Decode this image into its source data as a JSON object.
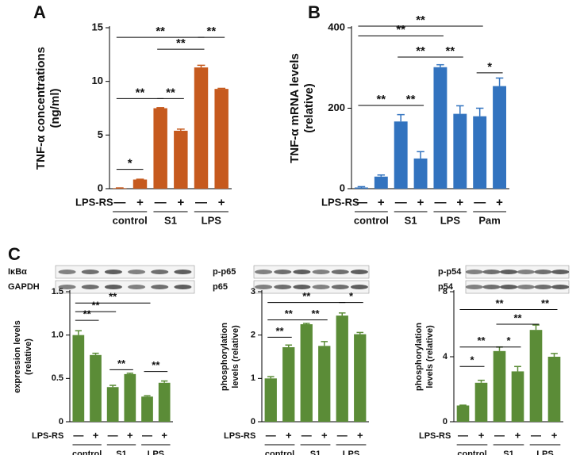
{
  "chart_data": [
    {
      "type": "bar",
      "panel": "A",
      "ylabel": [
        "TNF-α concentrations",
        "(ng/ml)"
      ],
      "color": "#c65a1e",
      "categories": [
        "—",
        "+",
        "—",
        "+",
        "—",
        "+"
      ],
      "row_label": "LPS-RS",
      "groups": [
        "control",
        "S1",
        "LPS"
      ],
      "values": [
        0.05,
        0.85,
        7.5,
        5.4,
        11.3,
        9.3
      ],
      "errors": [
        0.02,
        0.03,
        0.05,
        0.15,
        0.2,
        0.05
      ],
      "ylim": [
        0,
        15
      ],
      "yticks": [
        0,
        5,
        10,
        15
      ],
      "annotations": [
        {
          "text": "*",
          "from": 0,
          "to": 1
        },
        {
          "text": "**",
          "from": 0,
          "to": 2
        },
        {
          "text": "**",
          "from": 2,
          "to": 3
        },
        {
          "text": "**",
          "from": 2,
          "to": 4
        },
        {
          "text": "**",
          "from": 0,
          "to": 4
        },
        {
          "text": "**",
          "from": 4,
          "to": 5
        }
      ]
    },
    {
      "type": "bar",
      "panel": "B",
      "ylabel": [
        "TNF-α mRNA levels",
        "(relative)"
      ],
      "color": "#3273bf",
      "categories": [
        "—",
        "+",
        "—",
        "+",
        "—",
        "+",
        "—",
        "+"
      ],
      "row_label": "LPS-RS",
      "groups": [
        "control",
        "S1",
        "LPS",
        "Pam"
      ],
      "values": [
        3,
        30,
        167,
        75,
        302,
        186,
        180,
        255
      ],
      "errors": [
        2,
        4,
        17,
        17,
        6,
        20,
        20,
        20
      ],
      "ylim": [
        0,
        400
      ],
      "yticks": [
        0,
        200,
        400
      ],
      "annotations": [
        {
          "text": "**",
          "from": 0,
          "to": 2
        },
        {
          "text": "**",
          "from": 2,
          "to": 3
        },
        {
          "text": "**",
          "from": 2,
          "to": 4
        },
        {
          "text": "**",
          "from": 4,
          "to": 5
        },
        {
          "text": "*",
          "from": 6,
          "to": 7
        },
        {
          "text": "**",
          "from": 0,
          "to": 4
        },
        {
          "text": "**",
          "from": 0,
          "to": 6
        }
      ]
    },
    {
      "type": "bar",
      "panel": "C",
      "blot_labels": [
        "IκBα",
        "GAPDH"
      ],
      "ylabel": [
        "expression levels",
        "(relative)"
      ],
      "color": "#5b8c37",
      "categories": [
        "—",
        "+",
        "—",
        "+",
        "—",
        "+"
      ],
      "row_label": "LPS-RS",
      "groups": [
        "control",
        "S1",
        "LPS"
      ],
      "values": [
        1.0,
        0.77,
        0.4,
        0.55,
        0.29,
        0.45
      ],
      "errors": [
        0.05,
        0.02,
        0.02,
        0.01,
        0.01,
        0.02
      ],
      "ylim": [
        0,
        1.5
      ],
      "yticks": [
        0,
        0.5,
        {
          "value": 1,
          "label": "1.0"
        },
        1.5
      ],
      "annotations": [
        {
          "text": "**",
          "from": 0,
          "to": 1
        },
        {
          "text": "**",
          "from": 0,
          "to": 2
        },
        {
          "text": "**",
          "from": 0,
          "to": 4
        },
        {
          "text": "**",
          "from": 2,
          "to": 3
        },
        {
          "text": "**",
          "from": 4,
          "to": 5
        }
      ]
    },
    {
      "type": "bar",
      "blot_labels": [
        "p-p65",
        "p65"
      ],
      "ylabel": [
        "phosphorylation",
        "levels (relative)"
      ],
      "color": "#5b8c37",
      "categories": [
        "—",
        "+",
        "—",
        "+",
        "—",
        "+"
      ],
      "row_label": "LPS-RS",
      "groups": [
        "control",
        "S1",
        "LPS"
      ],
      "values": [
        1.0,
        1.72,
        2.25,
        1.75,
        2.45,
        2.02
      ],
      "errors": [
        0.04,
        0.05,
        0.02,
        0.1,
        0.06,
        0.04
      ],
      "ylim": [
        0,
        3
      ],
      "yticks": [
        0,
        1,
        2,
        3
      ],
      "annotations": [
        {
          "text": "**",
          "from": 0,
          "to": 1
        },
        {
          "text": "**",
          "from": 0,
          "to": 2
        },
        {
          "text": "**",
          "from": 2,
          "to": 3
        },
        {
          "text": "**",
          "from": 0,
          "to": 4
        },
        {
          "text": "*",
          "from": 4,
          "to": 5
        }
      ]
    },
    {
      "type": "bar",
      "blot_labels": [
        "p-p54",
        "p54"
      ],
      "ylabel": [
        "phosphorylation",
        "levels (relative)"
      ],
      "color": "#5b8c37",
      "categories": [
        "—",
        "+",
        "—",
        "+",
        "—",
        "+"
      ],
      "row_label": "LPS-RS",
      "groups": [
        "control",
        "S1",
        "LPS"
      ],
      "values": [
        1.0,
        2.4,
        4.35,
        3.1,
        5.65,
        4.0
      ],
      "errors": [
        0.02,
        0.15,
        0.25,
        0.3,
        0.3,
        0.2
      ],
      "ylim": [
        0,
        8
      ],
      "yticks": [
        0,
        4,
        8
      ],
      "annotations": [
        {
          "text": "*",
          "from": 0,
          "to": 1
        },
        {
          "text": "**",
          "from": 0,
          "to": 2
        },
        {
          "text": "*",
          "from": 2,
          "to": 3
        },
        {
          "text": "**",
          "from": 2,
          "to": 4
        },
        {
          "text": "**",
          "from": 0,
          "to": 4
        },
        {
          "text": "**",
          "from": 4,
          "to": 5
        }
      ]
    }
  ]
}
